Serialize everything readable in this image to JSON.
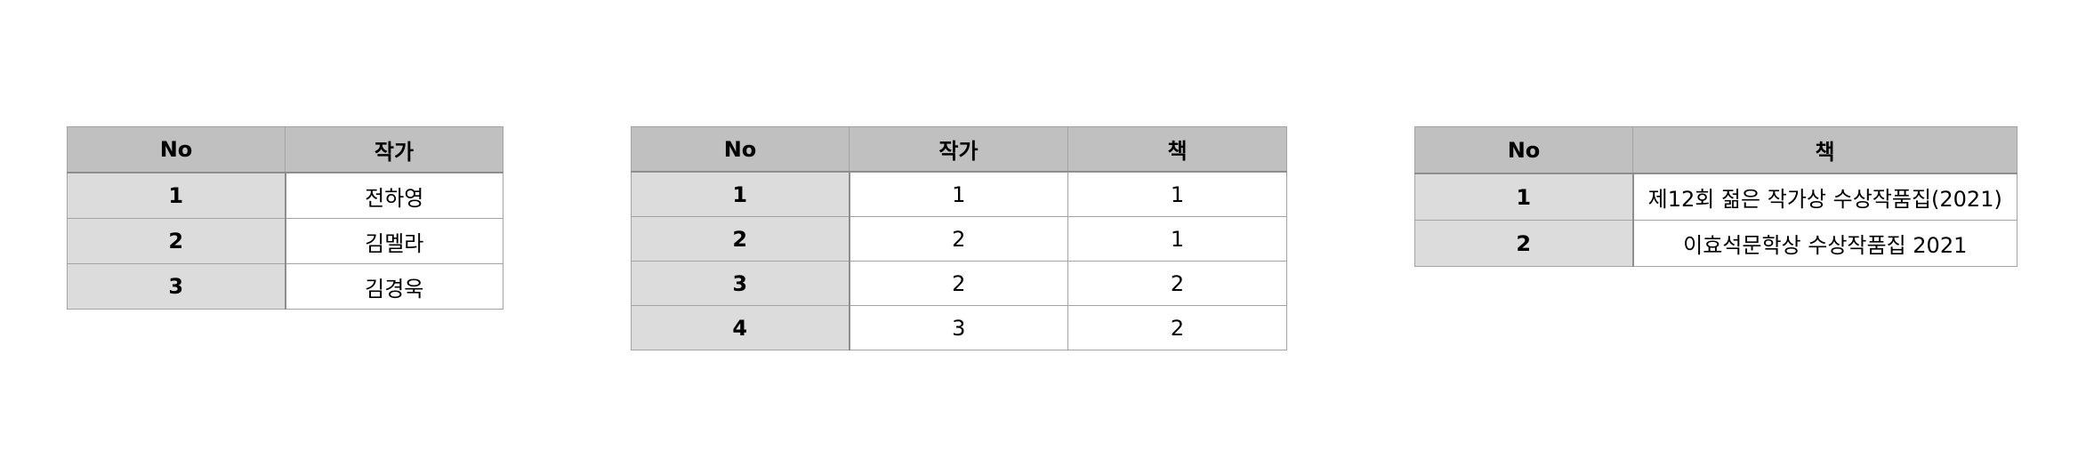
{
  "tables": [
    {
      "headers": [
        "No",
        "작가"
      ],
      "rows": [
        [
          "1",
          "전하영"
        ],
        [
          "2",
          "김멜라"
        ],
        [
          "3",
          "김경욱"
        ]
      ]
    },
    {
      "headers": [
        "No",
        "작가",
        "책"
      ],
      "rows": [
        [
          "1",
          "1",
          "1"
        ],
        [
          "2",
          "2",
          "1"
        ],
        [
          "3",
          "2",
          "2"
        ],
        [
          "4",
          "3",
          "2"
        ]
      ]
    },
    {
      "headers": [
        "No",
        "책"
      ],
      "rows": [
        [
          "1",
          "제12회 젊은 작가상 수상작품집(2021)"
        ],
        [
          "2",
          "이효석문학상 수상작품집 2021"
        ]
      ]
    }
  ],
  "colors": {
    "header_background": "#bfc0bf",
    "index_column_background": "#dcdcdc",
    "cell_background": "#ffffff",
    "border": "#a3a3a3"
  }
}
